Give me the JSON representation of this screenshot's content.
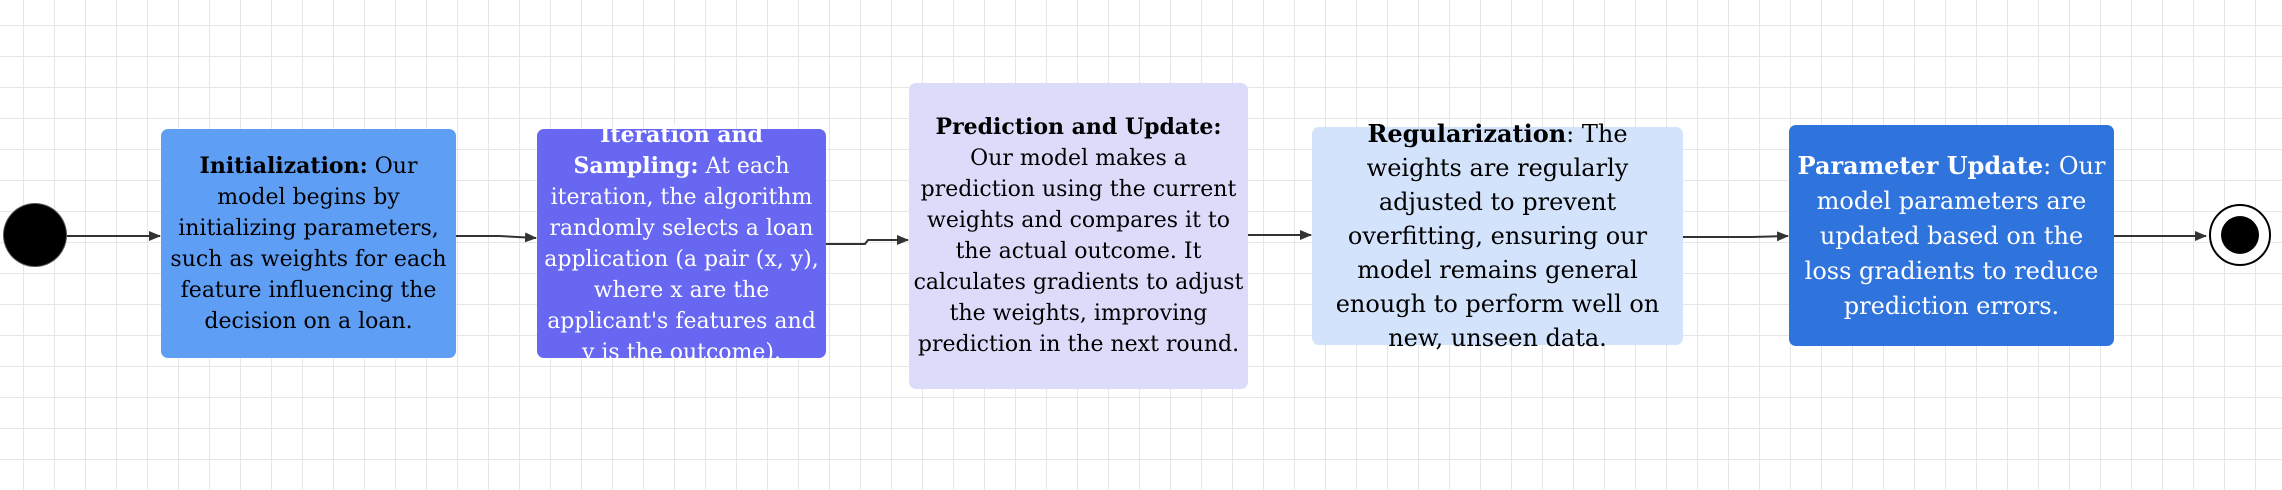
{
  "diagram": {
    "nodes": [
      {
        "id": "start",
        "kind": "initial-state"
      },
      {
        "id": "initialization",
        "title": "Initialization:",
        "text": "Our model begins by initializing parameters, such as weights for each feature influencing the decision on a loan.",
        "fill": "#5f9ef5",
        "text_color": "#000000"
      },
      {
        "id": "iteration",
        "title": "Iteration and Sampling:",
        "text": "At each iteration, the algorithm randomly selects a loan application (a pair (x, y), where x are the applicant's features and y is the outcome).",
        "fill": "#6767f2",
        "text_color": "#ffffff"
      },
      {
        "id": "prediction",
        "title": "Prediction and Update:",
        "text": "Our model makes a prediction using the current weights and compares it to the actual outcome. It calculates gradients to adjust the weights, improving prediction in the next round.",
        "fill": "#dcdcfa",
        "text_color": "#000000"
      },
      {
        "id": "regularization",
        "title": "Regularization",
        "text": ": The weights are regularly adjusted to prevent overfitting, ensuring our model remains general enough to perform well on new, unseen data.",
        "fill": "#d3e3fc",
        "text_color": "#000000"
      },
      {
        "id": "parameter-update",
        "title": "Parameter Update",
        "text": ": Our model parameters are updated based on the loss gradients to reduce prediction errors.",
        "fill": "#2f73dd",
        "text_color": "#ffffff"
      },
      {
        "id": "end",
        "kind": "final-state"
      }
    ],
    "edges": [
      {
        "from": "start",
        "to": "initialization"
      },
      {
        "from": "initialization",
        "to": "iteration"
      },
      {
        "from": "iteration",
        "to": "prediction"
      },
      {
        "from": "prediction",
        "to": "regularization"
      },
      {
        "from": "regularization",
        "to": "parameter-update"
      },
      {
        "from": "parameter-update",
        "to": "end"
      }
    ]
  }
}
